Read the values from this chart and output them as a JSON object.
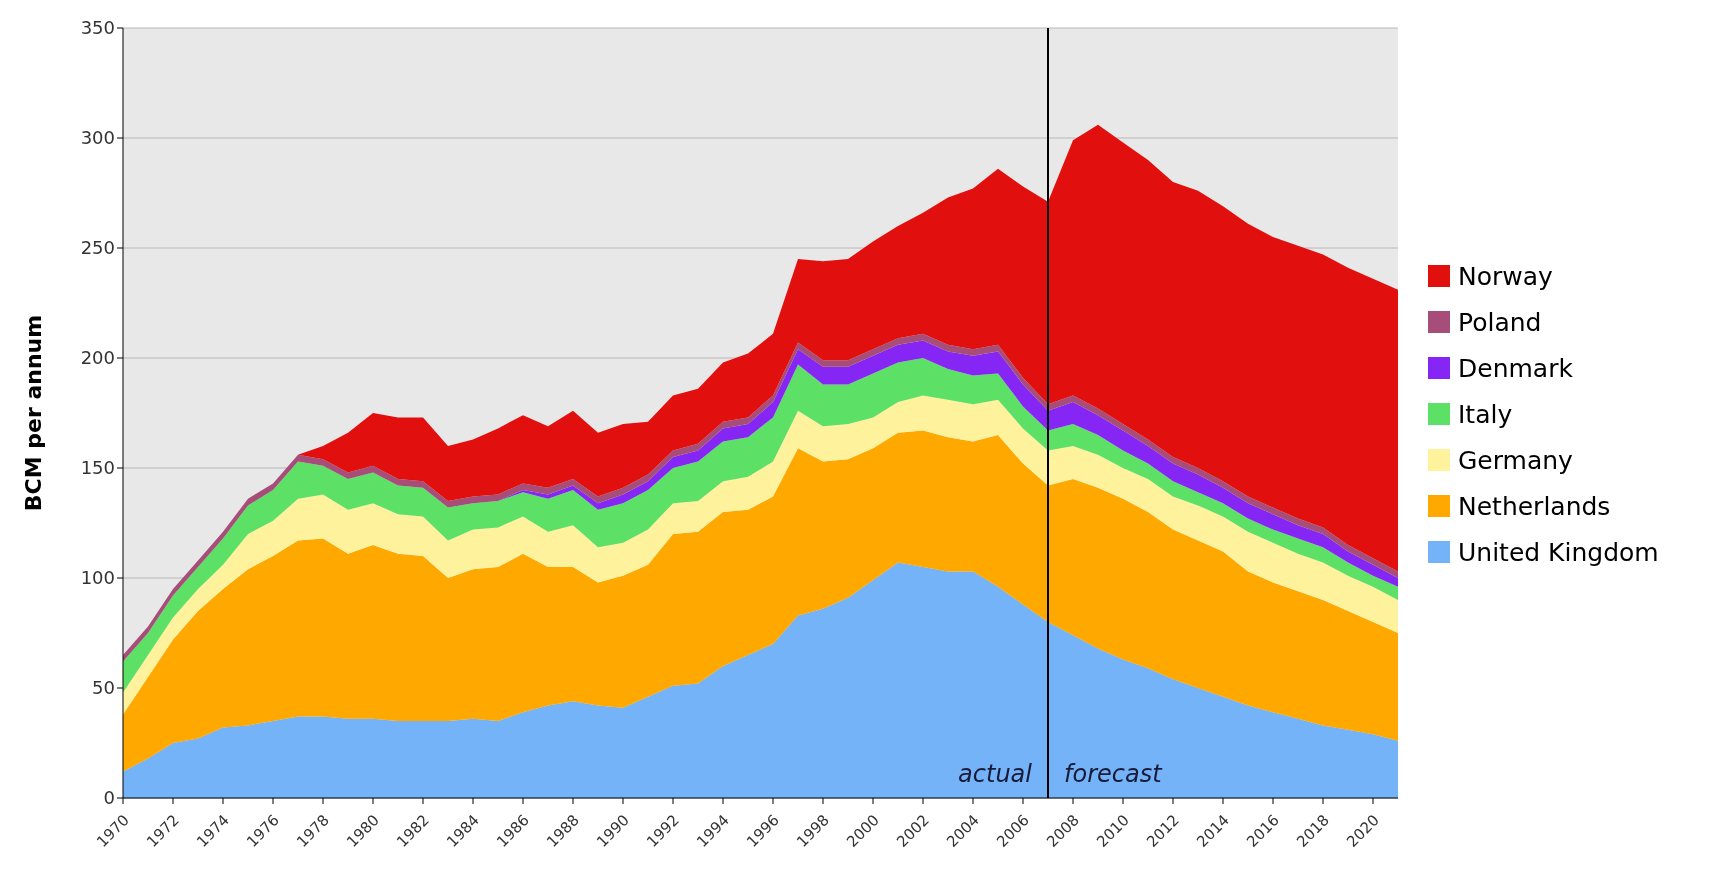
{
  "chart_data": {
    "type": "area",
    "stacked": true,
    "ylabel": "BCM per annum",
    "x": [
      1970,
      1971,
      1972,
      1973,
      1974,
      1975,
      1976,
      1977,
      1978,
      1979,
      1980,
      1981,
      1982,
      1983,
      1984,
      1985,
      1986,
      1987,
      1988,
      1989,
      1990,
      1991,
      1992,
      1993,
      1994,
      1995,
      1996,
      1997,
      1998,
      1999,
      2000,
      2001,
      2002,
      2003,
      2004,
      2005,
      2006,
      2007,
      2008,
      2009,
      2010,
      2011,
      2012,
      2013,
      2014,
      2015,
      2016,
      2017,
      2018,
      2019,
      2020,
      2021
    ],
    "xlim": [
      1970,
      2021
    ],
    "xticks": [
      1970,
      1972,
      1974,
      1976,
      1978,
      1980,
      1982,
      1984,
      1986,
      1988,
      1990,
      1992,
      1994,
      1996,
      1998,
      2000,
      2002,
      2004,
      2006,
      2008,
      2010,
      2012,
      2014,
      2016,
      2018,
      2020
    ],
    "ylim": [
      0,
      350
    ],
    "yticks": [
      0,
      50,
      100,
      150,
      200,
      250,
      300,
      350
    ],
    "grid": "y",
    "legend": "right",
    "series": [
      {
        "name": "United Kingdom",
        "color": "#74b3f8",
        "values": [
          12,
          18,
          25,
          27,
          32,
          33,
          35,
          37,
          37,
          36,
          36,
          35,
          35,
          35,
          36,
          35,
          39,
          42,
          44,
          42,
          41,
          46,
          51,
          52,
          60,
          65,
          70,
          83,
          86,
          91,
          99,
          107,
          105,
          103,
          103,
          96,
          88,
          80,
          74,
          68,
          63,
          59,
          54,
          50,
          46,
          42,
          39,
          36,
          33,
          31,
          29,
          26
        ]
      },
      {
        "name": "Netherlands",
        "color": "#ffa800",
        "values": [
          26,
          37,
          47,
          58,
          63,
          71,
          75,
          80,
          81,
          75,
          79,
          76,
          75,
          65,
          68,
          70,
          72,
          63,
          61,
          56,
          60,
          60,
          69,
          69,
          70,
          66,
          67,
          76,
          67,
          63,
          60,
          59,
          62,
          61,
          59,
          69,
          64,
          62,
          71,
          73,
          73,
          71,
          68,
          67,
          66,
          61,
          59,
          58,
          57,
          54,
          51,
          49
        ]
      },
      {
        "name": "Germany",
        "color": "#fff29c",
        "values": [
          10,
          10,
          10,
          10,
          11,
          16,
          16,
          19,
          20,
          20,
          19,
          18,
          18,
          17,
          18,
          18,
          17,
          16,
          19,
          16,
          15,
          16,
          14,
          14,
          14,
          15,
          16,
          17,
          16,
          16,
          14,
          14,
          16,
          17,
          17,
          16,
          16,
          16,
          15,
          15,
          14,
          15,
          15,
          16,
          16,
          18,
          18,
          17,
          17,
          16,
          16,
          15
        ]
      },
      {
        "name": "Italy",
        "color": "#5ce065",
        "values": [
          14,
          10,
          10,
          10,
          12,
          13,
          14,
          17,
          13,
          14,
          14,
          13,
          13,
          15,
          12,
          12,
          11,
          15,
          16,
          17,
          18,
          18,
          16,
          18,
          18,
          18,
          20,
          21,
          19,
          18,
          20,
          18,
          17,
          14,
          13,
          12,
          10,
          9,
          10,
          9,
          8,
          7,
          7,
          6,
          6,
          6,
          6,
          7,
          7,
          6,
          5,
          6
        ]
      },
      {
        "name": "Denmark",
        "color": "#8626f5",
        "values": [
          0,
          0,
          0,
          0,
          0,
          0,
          0,
          0,
          0,
          0,
          0,
          0,
          0,
          0,
          0,
          0,
          1,
          2,
          2,
          3,
          4,
          4,
          5,
          5,
          6,
          6,
          7,
          7,
          8,
          8,
          8,
          8,
          8,
          8,
          9,
          10,
          10,
          9,
          10,
          9,
          9,
          8,
          8,
          8,
          7,
          7,
          7,
          6,
          6,
          5,
          5,
          4
        ]
      },
      {
        "name": "Poland",
        "color": "#a64d7a",
        "values": [
          3,
          3,
          3,
          3,
          3,
          3,
          3,
          3,
          3,
          3,
          3,
          3,
          3,
          3,
          3,
          3,
          3,
          3,
          3,
          3,
          3,
          3,
          3,
          3,
          3,
          3,
          3,
          3,
          3,
          3,
          3,
          3,
          3,
          3,
          3,
          3,
          3,
          3,
          3,
          3,
          3,
          3,
          3,
          3,
          3,
          3,
          3,
          3,
          3,
          3,
          3,
          3
        ]
      },
      {
        "name": "Norway",
        "color": "#e20f0f",
        "values": [
          0,
          0,
          0,
          0,
          0,
          0,
          0,
          0,
          6,
          18,
          24,
          28,
          29,
          25,
          26,
          30,
          31,
          28,
          31,
          29,
          29,
          24,
          25,
          25,
          27,
          29,
          28,
          38,
          45,
          46,
          49,
          51,
          55,
          67,
          73,
          80,
          87,
          92,
          116,
          129,
          128,
          127,
          125,
          126,
          125,
          124,
          123,
          124,
          124,
          126,
          127,
          128
        ]
      }
    ],
    "ref_lines": [
      {
        "axis": "x",
        "value": 2007,
        "color": "#000000"
      }
    ],
    "annotations": [
      "actual",
      "forecast"
    ]
  }
}
